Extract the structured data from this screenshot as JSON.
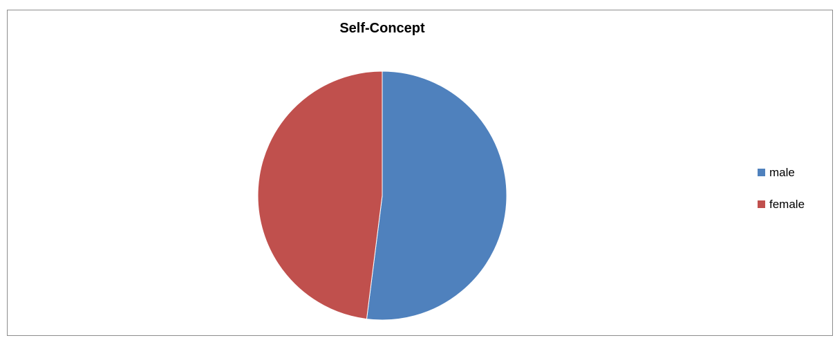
{
  "chart_data": {
    "type": "pie",
    "title": "Self-Concept",
    "slices": [
      {
        "label": "male",
        "value": 52,
        "color": "#4f81bd"
      },
      {
        "label": "female",
        "value": 48,
        "color": "#c0504d"
      }
    ],
    "start_angle_deg": 0,
    "legend_placement": "right"
  }
}
